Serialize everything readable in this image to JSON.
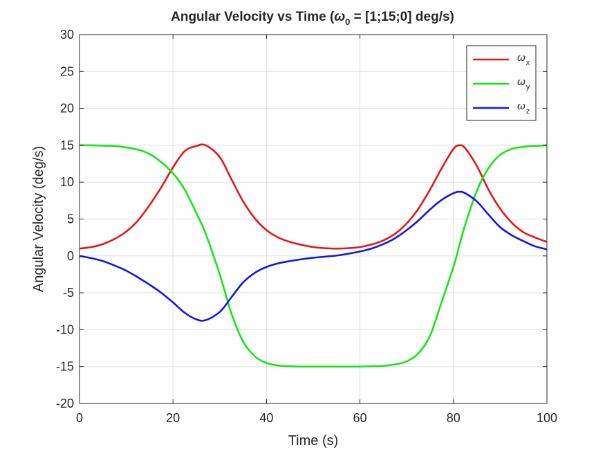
{
  "chart_data": {
    "type": "line",
    "title": {
      "prefix": "Angular Velocity vs Time (",
      "omega": "ω",
      "omega_sub": "0",
      "suffix": " = [1;15;0] deg/s)"
    },
    "xlabel": "Time (s)",
    "ylabel": "Angular Velocity (deg/s)",
    "xlim": [
      0,
      100
    ],
    "ylim": [
      -20,
      30
    ],
    "xticks": [
      0,
      20,
      40,
      60,
      80,
      100
    ],
    "yticks": [
      -20,
      -15,
      -10,
      -5,
      0,
      5,
      10,
      15,
      20,
      25,
      30
    ],
    "grid": true,
    "legend_position": "top-right",
    "x": [
      0,
      2.5,
      5,
      7.5,
      10,
      12.5,
      15,
      17.5,
      20,
      22.5,
      25,
      27,
      30,
      32.5,
      35,
      37.5,
      40,
      42.5,
      45,
      47.5,
      50,
      52.5,
      55,
      57.5,
      60,
      62.5,
      65,
      67.5,
      70,
      72.5,
      75,
      77.5,
      80,
      81.3,
      82.5,
      85,
      87.5,
      90,
      92.5,
      95,
      97.5,
      100
    ],
    "series": [
      {
        "symbol": "ω",
        "subscript": "x",
        "color": "#e61414",
        "values": [
          1.0,
          1.2,
          1.6,
          2.3,
          3.3,
          4.8,
          6.9,
          9.3,
          12.0,
          14.2,
          14.9,
          15.0,
          13.4,
          10.4,
          7.4,
          5.1,
          3.5,
          2.5,
          1.9,
          1.5,
          1.2,
          1.05,
          1.0,
          1.05,
          1.2,
          1.55,
          2.1,
          3.0,
          4.4,
          6.4,
          9.0,
          11.9,
          14.5,
          15.0,
          14.6,
          12.2,
          9.0,
          6.4,
          4.5,
          3.2,
          2.5,
          1.9
        ]
      },
      {
        "symbol": "ω",
        "subscript": "y",
        "color": "#14e614",
        "values": [
          15.0,
          15.0,
          14.95,
          14.9,
          14.7,
          14.4,
          13.8,
          12.7,
          11.2,
          9.0,
          5.8,
          3.0,
          -2.5,
          -7.8,
          -11.6,
          -13.6,
          -14.5,
          -14.85,
          -14.95,
          -15.0,
          -15.0,
          -15.0,
          -15.0,
          -15.0,
          -15.0,
          -14.95,
          -14.9,
          -14.7,
          -14.3,
          -13.2,
          -10.8,
          -6.2,
          -1.5,
          1.5,
          4.2,
          8.8,
          11.9,
          13.7,
          14.5,
          14.8,
          14.9,
          15.0
        ]
      },
      {
        "symbol": "ω",
        "subscript": "z",
        "color": "#1414e6",
        "values": [
          0.0,
          -0.3,
          -0.7,
          -1.3,
          -2.0,
          -2.9,
          -3.9,
          -5.0,
          -6.3,
          -7.7,
          -8.6,
          -8.7,
          -7.6,
          -5.6,
          -3.6,
          -2.3,
          -1.5,
          -1.0,
          -0.7,
          -0.45,
          -0.25,
          -0.1,
          0.05,
          0.3,
          0.6,
          1.0,
          1.6,
          2.4,
          3.5,
          4.8,
          6.3,
          7.6,
          8.5,
          8.7,
          8.5,
          7.4,
          5.6,
          3.9,
          2.8,
          2.0,
          1.3,
          0.9
        ]
      }
    ]
  }
}
